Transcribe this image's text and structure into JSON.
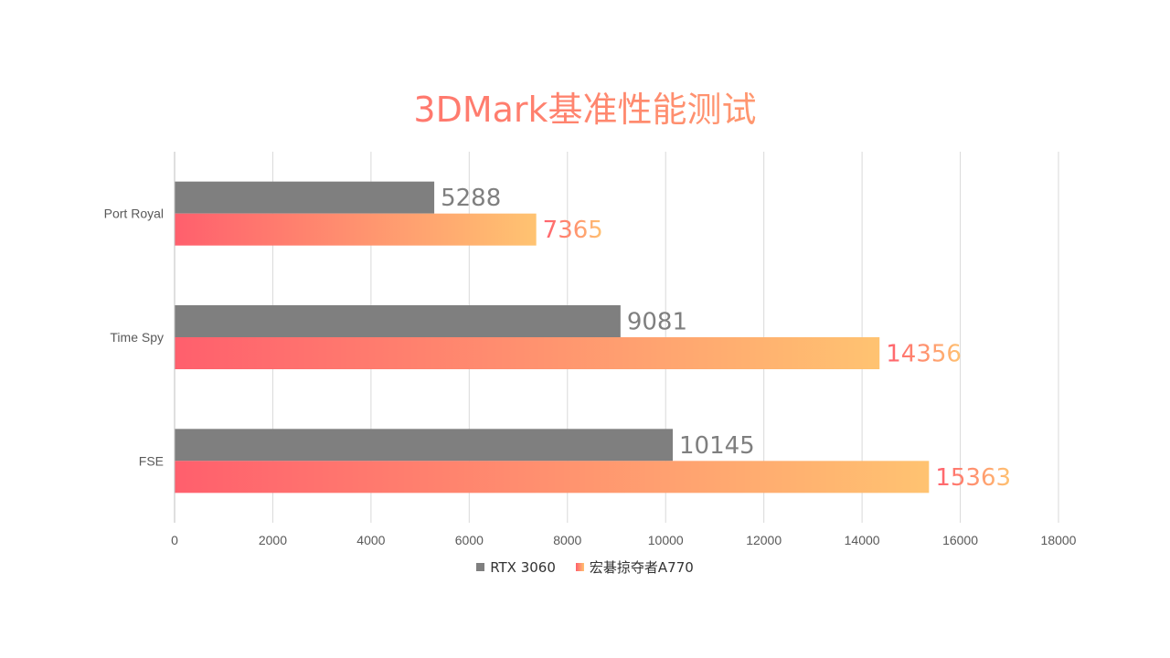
{
  "chart_data": {
    "type": "bar",
    "orientation": "horizontal",
    "title": "3DMark基准性能测试",
    "categories": [
      "Port Royal",
      "Time Spy",
      "FSE"
    ],
    "series": [
      {
        "name": "RTX 3060",
        "values": [
          5288,
          9081,
          10145
        ],
        "color": "#7f7f7f"
      },
      {
        "name": "宏碁掠夺者A770",
        "values": [
          7365,
          14356,
          15363
        ],
        "gradient": [
          "#ff5f6d",
          "#ffc371"
        ]
      }
    ],
    "xlim": [
      0,
      18000
    ],
    "xticks": [
      "0",
      "2000",
      "4000",
      "6000",
      "8000",
      "10000",
      "12000",
      "14000",
      "16000",
      "18000"
    ],
    "grid": true,
    "legend_position": "bottom",
    "data_labels": true
  }
}
